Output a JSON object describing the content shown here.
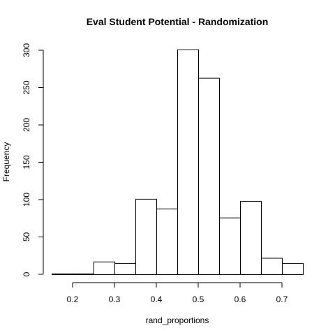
{
  "chart_data": {
    "type": "bar",
    "histogram": true,
    "title": "Eval Student Potential - Randomization",
    "xlabel": "rand_proportions",
    "ylabel": "Frequency",
    "bin_edges": [
      0.15,
      0.2,
      0.25,
      0.3,
      0.35,
      0.4,
      0.45,
      0.5,
      0.55,
      0.6,
      0.65,
      0.7,
      0.75
    ],
    "values": [
      1,
      1,
      17,
      15,
      101,
      88,
      301,
      263,
      76,
      98,
      22,
      15
    ],
    "xlim": [
      0.15,
      0.75
    ],
    "ylim": [
      0,
      300
    ],
    "xticks": [
      0.2,
      0.3,
      0.4,
      0.5,
      0.6,
      0.7
    ],
    "xtick_labels": [
      "0.2",
      "0.3",
      "0.4",
      "0.5",
      "0.6",
      "0.7"
    ],
    "yticks": [
      0,
      50,
      100,
      150,
      200,
      250,
      300
    ],
    "ytick_labels": [
      "0",
      "50",
      "100",
      "150",
      "200",
      "250",
      "300"
    ],
    "grid": false,
    "legend": "none",
    "colors": {
      "bar_fill": "#ffffff",
      "bar_stroke": "#000000"
    }
  }
}
